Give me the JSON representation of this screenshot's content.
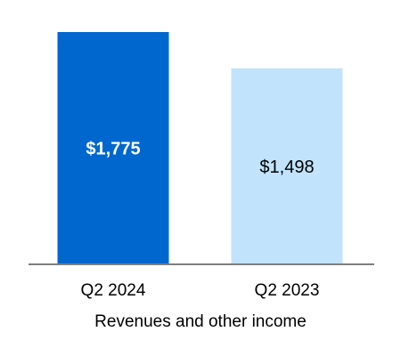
{
  "chart_data": {
    "type": "bar",
    "categories": [
      "Q2 2024",
      "Q2 2023"
    ],
    "values": [
      1775,
      1498
    ],
    "value_labels": [
      "$1,775",
      "$1,498"
    ],
    "colors": [
      "#0067CF",
      "#C2E3FC"
    ],
    "label_colors": [
      "#ffffff",
      "#000000"
    ],
    "label_bold": [
      true,
      false
    ],
    "xlabel": "Revenues and other income",
    "ylabel": "",
    "ylim": [
      0,
      1775
    ],
    "grid": false,
    "legend": "none"
  }
}
